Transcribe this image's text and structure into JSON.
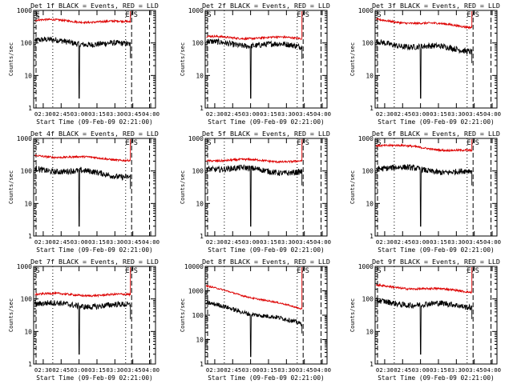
{
  "chart_data": [
    {
      "type": "line",
      "title": "Det 1f BLACK = Events, RED = LLD",
      "xlabel": "Start Time (09-Feb-09 02:21:00)",
      "ylabel": "Counts/sec",
      "yscale": "log",
      "ylim": [
        1,
        1000
      ],
      "y_ticks": [
        "1",
        "10",
        "100",
        "1000"
      ],
      "x_ticks": [
        "02:30",
        "02:45",
        "03:00",
        "03:15",
        "03:30",
        "03:45",
        "04:00"
      ],
      "markers": [
        "E",
        "S",
        "E/S"
      ],
      "series": [
        {
          "name": "Events",
          "color": "#000000",
          "start": 120,
          "end": 85,
          "dip": "03:00"
        },
        {
          "name": "LLD",
          "color": "#dd0000",
          "start": 500,
          "end": 430,
          "spike": "03:43"
        }
      ]
    },
    {
      "type": "line",
      "title": "Det 2f BLACK = Events, RED = LLD",
      "xlabel": "Start Time (09-Feb-09 02:21:00)",
      "ylabel": "Counts/sec",
      "yscale": "log",
      "ylim": [
        1,
        1000
      ],
      "y_ticks": [
        "1",
        "10",
        "100",
        "1000"
      ],
      "x_ticks": [
        "02:30",
        "02:45",
        "03:00",
        "03:15",
        "03:30",
        "03:45",
        "04:00"
      ],
      "markers": [
        "S",
        "E/S"
      ],
      "series": [
        {
          "name": "Events",
          "color": "#000000",
          "start": 100,
          "end": 80,
          "dip": "03:00"
        },
        {
          "name": "LLD",
          "color": "#dd0000",
          "start": 150,
          "end": 140,
          "spike": "03:43"
        }
      ]
    },
    {
      "type": "line",
      "title": "Det 3f BLACK = Events, RED = LLD",
      "xlabel": "Start Time (09-Feb-09 02:21:00)",
      "ylabel": "Counts/sec",
      "yscale": "log",
      "ylim": [
        1,
        1000
      ],
      "y_ticks": [
        "1",
        "10",
        "100",
        "1000"
      ],
      "x_ticks": [
        "02:30",
        "02:45",
        "03:00",
        "03:15",
        "03:30",
        "03:45",
        "04:00"
      ],
      "markers": [
        "S",
        "E/S"
      ],
      "series": [
        {
          "name": "Events",
          "color": "#000000",
          "start": 100,
          "end": 60,
          "dip": "03:00"
        },
        {
          "name": "LLD",
          "color": "#dd0000",
          "start": 500,
          "end": 320,
          "spike": "03:43"
        }
      ]
    },
    {
      "type": "line",
      "title": "Det 4f BLACK = Events, RED = LLD",
      "xlabel": "Start Time (09-Feb-09 02:21:00)",
      "ylabel": "Counts/sec",
      "yscale": "log",
      "ylim": [
        1,
        1000
      ],
      "y_ticks": [
        "1",
        "10",
        "100",
        "1000"
      ],
      "x_ticks": [
        "02:30",
        "02:45",
        "03:00",
        "03:15",
        "03:30",
        "03:45",
        "04:00"
      ],
      "markers": [
        "S",
        "E/S"
      ],
      "series": [
        {
          "name": "Events",
          "color": "#000000",
          "start": 120,
          "end": 70,
          "dip": "03:00"
        },
        {
          "name": "LLD",
          "color": "#dd0000",
          "start": 300,
          "end": 220,
          "spike": "03:43"
        }
      ]
    },
    {
      "type": "line",
      "title": "Det 5f BLACK = Events, RED = LLD",
      "xlabel": "Start Time (09-Feb-09 02:21:00)",
      "ylabel": "Counts/sec",
      "yscale": "log",
      "ylim": [
        1,
        1000
      ],
      "y_ticks": [
        "1",
        "10",
        "100",
        "1000"
      ],
      "x_ticks": [
        "02:30",
        "02:45",
        "03:00",
        "03:15",
        "03:30",
        "03:45",
        "04:00"
      ],
      "markers": [
        "S",
        "E/S"
      ],
      "series": [
        {
          "name": "Events",
          "color": "#000000",
          "start": 130,
          "end": 90,
          "dip": "03:00"
        },
        {
          "name": "LLD",
          "color": "#dd0000",
          "start": 220,
          "end": 200,
          "spike": "03:43"
        }
      ]
    },
    {
      "type": "line",
      "title": "Det 6f BLACK = Events, RED = LLD",
      "xlabel": "Start Time (09-Feb-09 02:21:00)",
      "ylabel": "Counts/sec",
      "yscale": "log",
      "ylim": [
        1,
        1000
      ],
      "y_ticks": [
        "1",
        "10",
        "100",
        "1000"
      ],
      "x_ticks": [
        "02:30",
        "02:45",
        "03:00",
        "03:15",
        "03:30",
        "03:45",
        "04:00"
      ],
      "markers": [
        "S",
        "E/S"
      ],
      "series": [
        {
          "name": "Events",
          "color": "#000000",
          "start": 130,
          "end": 90,
          "dip": "03:00"
        },
        {
          "name": "LLD",
          "color": "#dd0000",
          "start": 650,
          "end": 400,
          "spike": "03:43"
        }
      ]
    },
    {
      "type": "line",
      "title": "Det 7f BLACK = Events, RED = LLD",
      "xlabel": "Start Time (09-Feb-09 02:21:00)",
      "ylabel": "Counts/sec",
      "yscale": "log",
      "ylim": [
        1,
        1000
      ],
      "y_ticks": [
        "1",
        "10",
        "100",
        "1000"
      ],
      "x_ticks": [
        "02:30",
        "02:45",
        "03:00",
        "03:15",
        "03:30",
        "03:45",
        "04:00"
      ],
      "markers": [
        "S",
        "E/S"
      ],
      "series": [
        {
          "name": "Events",
          "color": "#000000",
          "start": 70,
          "end": 60,
          "dip": "03:00"
        },
        {
          "name": "LLD",
          "color": "#dd0000",
          "start": 140,
          "end": 130,
          "spike": "03:43"
        }
      ]
    },
    {
      "type": "line",
      "title": "Det 8f BLACK = Events, RED = LLD",
      "xlabel": "Start Time (09-Feb-09 02:21:00)",
      "ylabel": "Counts/sec",
      "yscale": "log",
      "ylim": [
        1,
        10000
      ],
      "y_ticks": [
        "1",
        "10",
        "100",
        "1000",
        "10000"
      ],
      "x_ticks": [
        "02:30",
        "02:45",
        "03:00",
        "03:15",
        "03:30",
        "03:45",
        "04:00"
      ],
      "markers": [
        "E/S"
      ],
      "series": [
        {
          "name": "Events",
          "color": "#000000",
          "start": 300,
          "end": 45,
          "dip": "03:00"
        },
        {
          "name": "LLD",
          "color": "#dd0000",
          "start": 1500,
          "end": 180,
          "spike": "03:43"
        }
      ]
    },
    {
      "type": "line",
      "title": "Det 9f BLACK = Events, RED = LLD",
      "xlabel": "Start Time (09-Feb-09 02:21:00)",
      "ylabel": "Counts/sec",
      "yscale": "log",
      "ylim": [
        1,
        1000
      ],
      "y_ticks": [
        "1",
        "10",
        "100",
        "1000"
      ],
      "x_ticks": [
        "02:30",
        "02:45",
        "03:00",
        "03:15",
        "03:30",
        "03:45",
        "04:00"
      ],
      "markers": [
        "S",
        "E/S"
      ],
      "series": [
        {
          "name": "Events",
          "color": "#000000",
          "start": 80,
          "end": 60,
          "dip": "03:00"
        },
        {
          "name": "LLD",
          "color": "#dd0000",
          "start": 250,
          "end": 170,
          "spike": "03:43"
        }
      ]
    }
  ]
}
